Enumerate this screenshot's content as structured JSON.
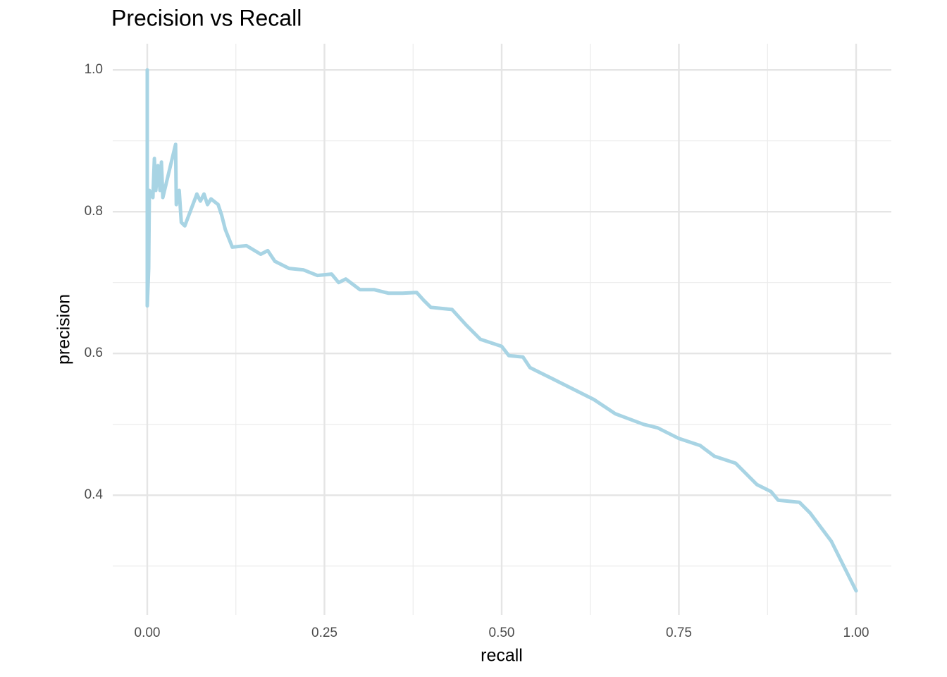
{
  "chart_data": {
    "type": "line",
    "title": "Precision vs Recall",
    "x_label": "recall",
    "y_label": "precision",
    "color": "#a8d4e4",
    "grid": true,
    "xlim": [
      -0.0487,
      1.0497
    ],
    "ylim": [
      0.231,
      1.037
    ],
    "xticks": [
      {
        "value": 0,
        "label": "0.00"
      },
      {
        "value": 0.25,
        "label": "0.25"
      },
      {
        "value": 0.5,
        "label": "0.50"
      },
      {
        "value": 0.75,
        "label": "0.75"
      },
      {
        "value": 1,
        "label": "1.00"
      }
    ],
    "yticks": [
      0.4,
      0.6,
      0.8,
      {
        "value": 1,
        "label": "1.0"
      }
    ],
    "xminor": [
      0.125,
      0.375,
      0.625,
      0.875
    ],
    "yminor": [
      0.3,
      0.5,
      0.7,
      0.9
    ],
    "x": [
      0.0,
      0.0,
      0.002,
      0.003,
      0.008,
      0.01,
      0.012,
      0.015,
      0.018,
      0.02,
      0.022,
      0.04,
      0.041,
      0.045,
      0.048,
      0.053,
      0.07,
      0.075,
      0.08,
      0.085,
      0.09,
      0.1,
      0.105,
      0.11,
      0.12,
      0.14,
      0.16,
      0.17,
      0.18,
      0.2,
      0.22,
      0.24,
      0.26,
      0.27,
      0.28,
      0.3,
      0.32,
      0.34,
      0.36,
      0.38,
      0.39,
      0.4,
      0.43,
      0.45,
      0.47,
      0.5,
      0.51,
      0.53,
      0.54,
      0.57,
      0.6,
      0.63,
      0.66,
      0.7,
      0.72,
      0.75,
      0.78,
      0.8,
      0.83,
      0.86,
      0.88,
      0.89,
      0.92,
      0.935,
      0.95,
      0.965,
      0.98,
      1.0
    ],
    "values": [
      1.0,
      0.667,
      0.72,
      0.83,
      0.82,
      0.875,
      0.83,
      0.865,
      0.83,
      0.87,
      0.82,
      0.895,
      0.81,
      0.83,
      0.785,
      0.78,
      0.825,
      0.815,
      0.825,
      0.81,
      0.818,
      0.81,
      0.795,
      0.775,
      0.75,
      0.752,
      0.74,
      0.745,
      0.73,
      0.72,
      0.718,
      0.71,
      0.712,
      0.7,
      0.705,
      0.69,
      0.69,
      0.685,
      0.685,
      0.686,
      0.675,
      0.665,
      0.662,
      0.64,
      0.62,
      0.61,
      0.597,
      0.595,
      0.58,
      0.565,
      0.55,
      0.535,
      0.515,
      0.5,
      0.495,
      0.48,
      0.47,
      0.455,
      0.445,
      0.415,
      0.405,
      0.393,
      0.39,
      0.375,
      0.355,
      0.335,
      0.305,
      0.265
    ]
  }
}
